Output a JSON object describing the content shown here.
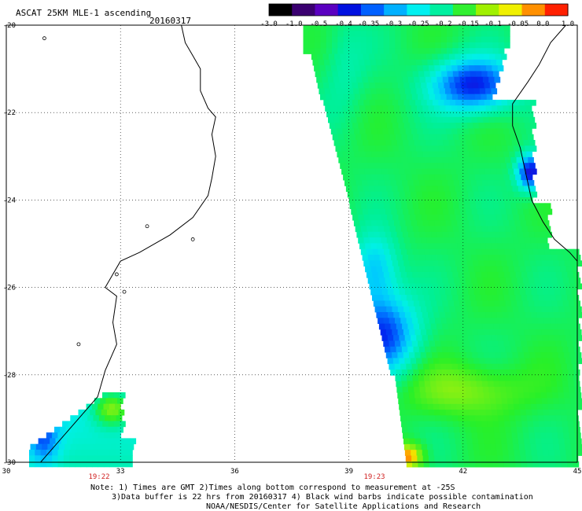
{
  "header": {
    "title": "ASCAT 25KM MLE-1 ascending",
    "date": "20160317"
  },
  "colorbar": {
    "tick_labels": [
      "-3.0",
      "-1.0",
      "-0.5",
      "-0.4",
      "-0.35",
      "-0.3",
      "-0.25",
      "-0.2",
      "-0.15",
      "-0.1",
      "-0.05",
      "0.0",
      "1.0"
    ],
    "colors": [
      "#000000",
      "#3a0070",
      "#5a00c0",
      "#0010e0",
      "#0060ff",
      "#00b0ff",
      "#00f0f0",
      "#00f0a0",
      "#30f030",
      "#a0f000",
      "#f0f000",
      "#ff9000",
      "#ff2000"
    ]
  },
  "map": {
    "lat_labels": [
      "-20",
      "-22",
      "-24",
      "-26",
      "-28",
      "-30"
    ],
    "lon_labels": [
      "30",
      "33",
      "36",
      "39",
      "42",
      "45"
    ],
    "time_labels": [
      "19:22",
      "19:23"
    ],
    "time_color": "#d02020"
  },
  "notes": {
    "line1": "Note: 1) Times are GMT 2)Times along bottom correspond to measurement at -25S",
    "line2": "3)Data buffer is 22 hrs from 20160317 4) Black wind barbs indicate possible contamination",
    "line3": "NOAA/NESDIS/Center for Satellite Applications and Research"
  }
}
